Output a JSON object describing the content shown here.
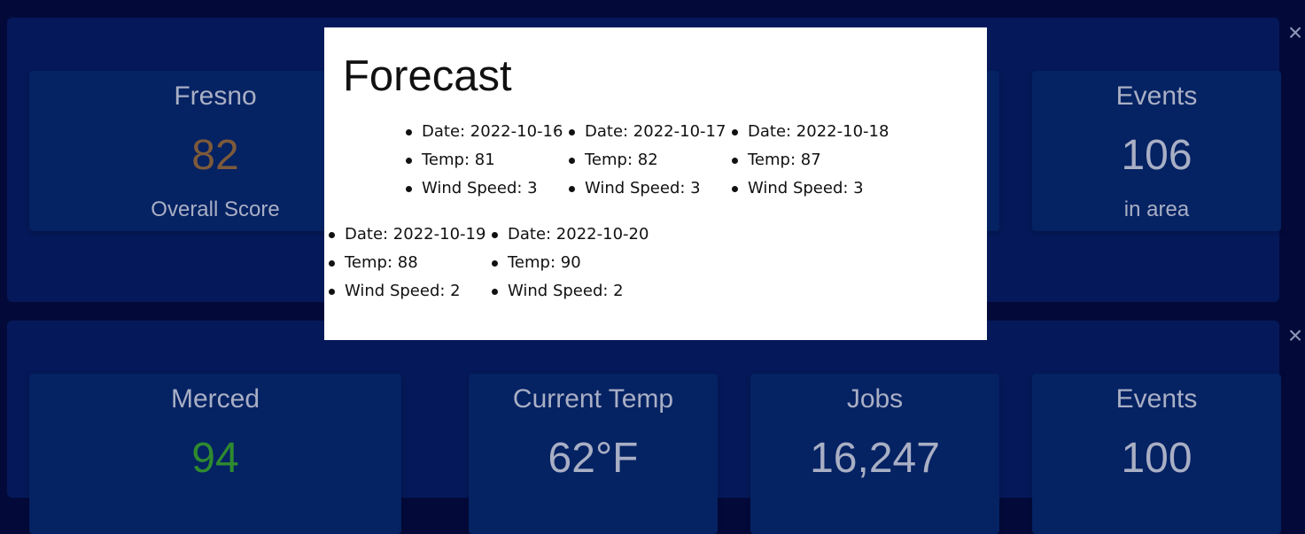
{
  "dashboard": {
    "rows": [
      {
        "close_label": "×",
        "cards": [
          {
            "title": "Fresno",
            "value": "82",
            "sub": "Overall Score"
          },
          {
            "title": "Events",
            "value": "106",
            "sub": "in area"
          }
        ]
      },
      {
        "close_label": "×",
        "cards": [
          {
            "title": "Merced",
            "value": "94"
          },
          {
            "title": "Current Temp",
            "value": "62°F"
          },
          {
            "title": "Jobs",
            "value": "16,247"
          },
          {
            "title": "Events",
            "value": "100"
          }
        ]
      }
    ]
  },
  "modal": {
    "title": "Forecast",
    "days": [
      {
        "date": "Date: 2022-10-16",
        "temp": "Temp: 81",
        "wind": "Wind Speed: 3"
      },
      {
        "date": "Date: 2022-10-17",
        "temp": "Temp: 82",
        "wind": "Wind Speed: 3"
      },
      {
        "date": "Date: 2022-10-18",
        "temp": "Temp: 87",
        "wind": "Wind Speed: 3"
      },
      {
        "date": "Date: 2022-10-19",
        "temp": "Temp: 88",
        "wind": "Wind Speed: 2"
      },
      {
        "date": "Date: 2022-10-20",
        "temp": "Temp: 90",
        "wind": "Wind Speed: 2"
      }
    ]
  },
  "colors": {
    "background": "#030a3a",
    "panel": "#05195a",
    "card": "#052263",
    "score_fresno": "#7d5a3a",
    "score_merced": "#2f8a2f"
  }
}
